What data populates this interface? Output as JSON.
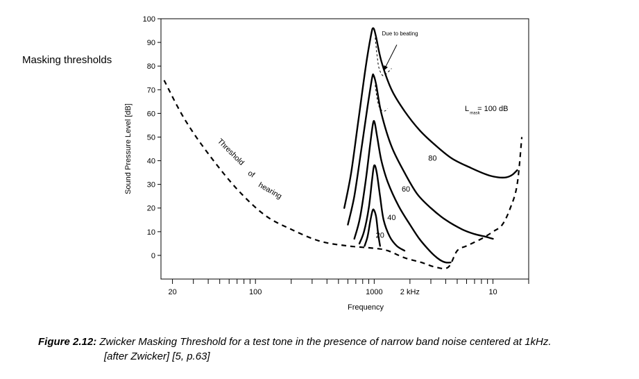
{
  "side_title": "Masking thresholds",
  "caption": {
    "label": "Figure 2.12:",
    "text": "Zwicker Masking Threshold for a test tone in the presence of narrow band noise centered at 1kHz.",
    "cont": "[after Zwicker] [5, p.63]"
  },
  "chart_data": {
    "type": "line",
    "title": "",
    "xlabel": "Frequency",
    "ylabel": "Sound Pressure Level [dB]",
    "xscale": "log",
    "xlim": [
      0.016,
      20
    ],
    "ylim": [
      -10,
      100
    ],
    "yticks": [
      0,
      10,
      20,
      30,
      40,
      50,
      60,
      70,
      80,
      90,
      100
    ],
    "xtick_labels": [
      {
        "x": 0.02,
        "label": "20"
      },
      {
        "x": 0.1,
        "label": "100"
      },
      {
        "x": 1,
        "label": "1000"
      },
      {
        "x": 2,
        "label": "2 kHz"
      },
      {
        "x": 10,
        "label": "10"
      }
    ],
    "series": [
      {
        "name": "",
        "style": "dashed",
        "x": [
          0.017,
          0.025,
          0.04,
          0.07,
          0.12,
          0.2,
          0.35,
          0.6,
          1.0,
          1.3,
          1.8,
          2.5,
          3.3,
          4.2,
          5.0,
          6.0,
          8.0,
          10.0,
          12.0,
          14.0,
          16.0,
          17.5
        ],
        "y": [
          74,
          58,
          43,
          28,
          17,
          11,
          6,
          4,
          3,
          2,
          -1,
          -3,
          -5,
          -5,
          2,
          4,
          7,
          10,
          13,
          20,
          30,
          50
        ]
      },
      {
        "name": "",
        "style": "solid",
        "x": [
          0.83,
          0.88,
          0.93,
          0.97,
          1.0,
          1.04,
          1.08,
          1.12
        ],
        "y": [
          4,
          8,
          15,
          19,
          19,
          16,
          9,
          4
        ]
      },
      {
        "name": "",
        "style": "solid",
        "x": [
          0.75,
          0.82,
          0.9,
          0.96,
          1.0,
          1.05,
          1.12,
          1.2,
          1.35,
          1.55,
          1.8
        ],
        "y": [
          5,
          10,
          20,
          32,
          38,
          35,
          25,
          15,
          8,
          4,
          2
        ]
      },
      {
        "name": "",
        "style": "solid",
        "x": [
          0.68,
          0.76,
          0.85,
          0.93,
          0.98,
          1.01,
          1.06,
          1.15,
          1.3,
          1.6,
          2.0,
          2.4,
          2.8,
          3.2,
          3.6,
          4.0,
          4.4
        ],
        "y": [
          7,
          16,
          32,
          48,
          56,
          56,
          50,
          40,
          31,
          21,
          13,
          7,
          3,
          0,
          -2,
          -3,
          -3
        ]
      },
      {
        "name": "",
        "style": "solid",
        "x": [
          0.6,
          0.68,
          0.78,
          0.88,
          0.96,
          0.99,
          1.04,
          1.15,
          1.4,
          1.8,
          2.3,
          3.0,
          4.0,
          5.5,
          7.0,
          8.5,
          10.0
        ],
        "y": [
          13,
          25,
          45,
          63,
          75,
          76,
          72,
          60,
          46,
          35,
          26,
          20,
          15,
          11,
          9,
          8,
          7
        ]
      },
      {
        "name": "",
        "style": "solid",
        "x": [
          0.56,
          0.64,
          0.74,
          0.85,
          0.94,
          0.98,
          1.03,
          1.15,
          1.4,
          1.8,
          2.4,
          3.2,
          4.5,
          6.5,
          9.0,
          11.0,
          13.0,
          14.5,
          16.0
        ],
        "y": [
          20,
          35,
          58,
          80,
          93,
          96,
          93,
          82,
          70,
          61,
          53,
          47,
          41,
          37,
          34,
          33,
          33,
          34,
          36
        ]
      },
      {
        "name": "",
        "style": "thin-dashed",
        "x": [
          1.02,
          1.06,
          1.1,
          1.18,
          1.28,
          1.4
        ],
        "y": [
          92,
          84,
          79,
          76,
          77,
          79
        ]
      },
      {
        "name": "",
        "style": "thin-dashed",
        "x": [
          1.02,
          1.06,
          1.12,
          1.22,
          1.3
        ],
        "y": [
          72,
          66,
          62,
          61,
          62
        ]
      }
    ],
    "annotations": [
      {
        "text": "Threshold",
        "x": 0.06,
        "y": 43,
        "rotate": 45
      },
      {
        "text": "of",
        "x": 0.09,
        "y": 33.5,
        "rotate": 32
      },
      {
        "text": "hearing",
        "x": 0.13,
        "y": 26.5,
        "rotate": 30
      },
      {
        "text": "Due to beating",
        "x": 1.65,
        "y": 93
      },
      {
        "text": "80",
        "x": 3.1,
        "y": 40
      },
      {
        "text": "60",
        "x": 1.85,
        "y": 27
      },
      {
        "text": "40",
        "x": 1.4,
        "y": 15
      },
      {
        "text": "20",
        "x": 1.12,
        "y": 7.5
      },
      {
        "text": "L",
        "x": 5.8,
        "y": 61
      },
      {
        "text": "mask",
        "x": 6.4,
        "y": 59.7,
        "small": true
      },
      {
        "text": "= 100 dB",
        "x": 7.4,
        "y": 61
      }
    ],
    "arrow": {
      "from": [
        1.55,
        89
      ],
      "to": [
        1.2,
        78
      ]
    }
  }
}
